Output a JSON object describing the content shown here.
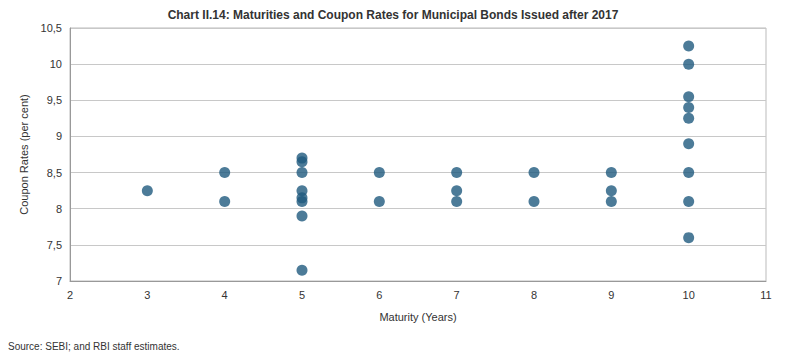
{
  "chart_data": {
    "type": "scatter",
    "title": "Chart II.14: Maturities and Coupon Rates for Municipal Bonds Issued after 2017",
    "x_label": "Maturity (Years)",
    "y_label": "Coupon Rates (per cent)",
    "source": "Source: SEBI; and RBI staff estimates.",
    "x": [
      3,
      4,
      4,
      5,
      5,
      5,
      5,
      5,
      5,
      5,
      5,
      6,
      6,
      7,
      7,
      7,
      8,
      8,
      9,
      9,
      9,
      10,
      10,
      10,
      10,
      10,
      10,
      10,
      10,
      10
    ],
    "values": [
      8.25,
      8.5,
      8.1,
      8.7,
      8.65,
      8.5,
      8.25,
      8.15,
      8.1,
      7.9,
      7.15,
      8.5,
      8.1,
      8.5,
      8.25,
      8.1,
      8.5,
      8.1,
      8.5,
      8.25,
      8.1,
      10.25,
      10.0,
      9.55,
      9.4,
      9.25,
      8.9,
      8.5,
      8.1,
      7.6
    ],
    "color": "#1f5a7e",
    "marker": "circle",
    "xlim": [
      2,
      11
    ],
    "xticks": [
      2,
      3,
      4,
      5,
      6,
      7,
      8,
      9,
      10,
      11
    ],
    "ylim": [
      7,
      10.5
    ],
    "yticks": [
      7,
      {
        "value": 7.5,
        "label": "7,5"
      },
      8,
      {
        "value": 8.5,
        "label": "8,5"
      },
      9,
      {
        "value": 9.5,
        "label": "9,5"
      },
      10,
      {
        "value": 10.5,
        "label": "10,5"
      }
    ],
    "grid": true
  }
}
